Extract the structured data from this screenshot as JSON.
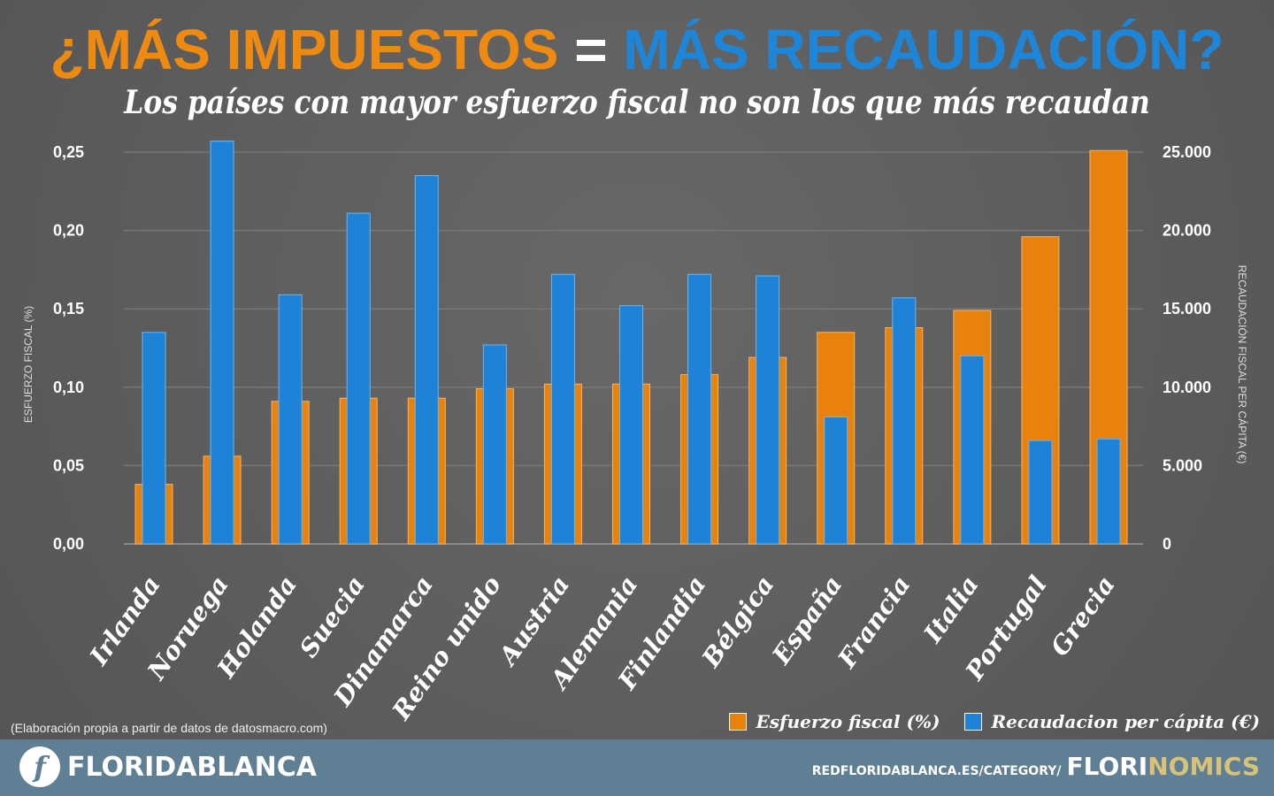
{
  "title": {
    "part1": "¿MÁS IMPUESTOS",
    "eq": "=",
    "part2": "MÁS RECAUDACIÓN?"
  },
  "subtitle": "Los países con mayor esfuerzo fiscal no son los que más recaudan",
  "source": "(Elaboración propia a partir de datos de datosmacro.com)",
  "footer": {
    "brand": "FLORIDABLANCA",
    "url": "REDFLORIDABLANCA.ES/CATEGORY/",
    "section1": "FLORI",
    "section2": "NOMICS"
  },
  "colors": {
    "orange": "#e8820c",
    "blue": "#1e83d6",
    "footer": "#5f7f94"
  },
  "chart_data": {
    "type": "bar",
    "categories": [
      "Irlanda",
      "Noruega",
      "Holanda",
      "Suecia",
      "Dinamarca",
      "Reino unido",
      "Austria",
      "Alemania",
      "Finlandia",
      "Bélgica",
      "España",
      "Francia",
      "Italia",
      "Portugal",
      "Grecia"
    ],
    "series": [
      {
        "name": "Esfuerzo fiscal (%)",
        "axis": "left",
        "color": "#e8820c",
        "values": [
          0.038,
          0.056,
          0.091,
          0.093,
          0.093,
          0.099,
          0.102,
          0.102,
          0.108,
          0.119,
          0.135,
          0.138,
          0.149,
          0.196,
          0.251
        ]
      },
      {
        "name": "Recaudacion per cápita (€)",
        "axis": "right",
        "color": "#1e83d6",
        "values": [
          13500,
          25700,
          15900,
          21100,
          23500,
          12700,
          17200,
          15200,
          17200,
          17100,
          8100,
          15700,
          12000,
          6600,
          6700
        ]
      }
    ],
    "ylabel": "ESFUERZO FISCAL (%)",
    "y2label": "RECAUDACIÓN FISCAL PER CÁPITA (€)",
    "ylim": [
      0,
      0.25
    ],
    "y2lim": [
      0,
      25000
    ],
    "yticks": [
      "0,00",
      "0,05",
      "0,10",
      "0,15",
      "0,20",
      "0,25"
    ],
    "y2ticks": [
      "0",
      "5.000",
      "10.000",
      "15.000",
      "20.000",
      "25.000"
    ],
    "grid": true,
    "legend": "bottom-right"
  }
}
